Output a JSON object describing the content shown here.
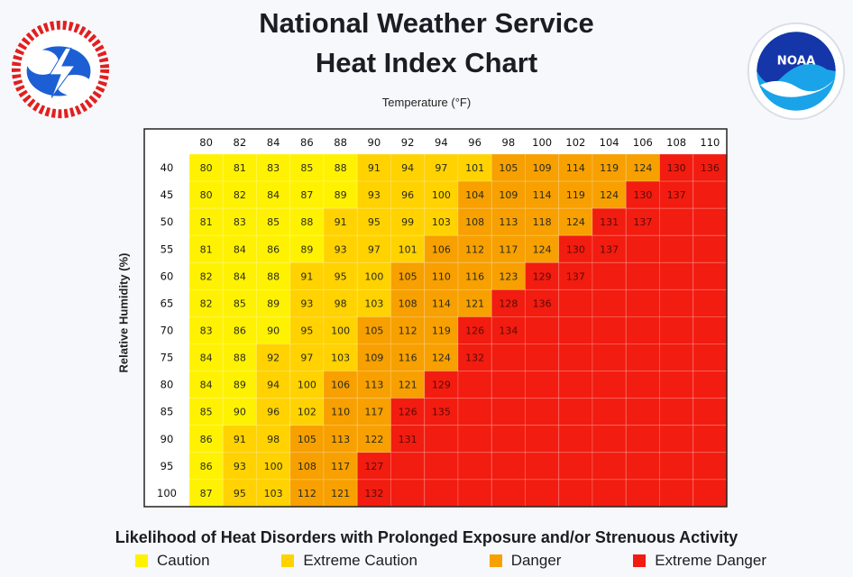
{
  "header": {
    "title_line1": "National Weather Service",
    "title_line2": "Heat Index Chart"
  },
  "logos": {
    "left": "nws-logo-icon",
    "right": "noaa-logo-icon",
    "noaa_text": "NOAA"
  },
  "chart_data": {
    "type": "heatmap",
    "xlabel": "Temperature (°F)",
    "ylabel": "Relative Humidity (%)",
    "x": [
      80,
      82,
      84,
      86,
      88,
      90,
      92,
      94,
      96,
      98,
      100,
      102,
      104,
      106,
      108,
      110
    ],
    "y": [
      40,
      45,
      50,
      55,
      60,
      65,
      70,
      75,
      80,
      85,
      90,
      95,
      100
    ],
    "values": [
      [
        80,
        81,
        83,
        85,
        88,
        91,
        94,
        97,
        101,
        105,
        109,
        114,
        119,
        124,
        130,
        136
      ],
      [
        80,
        82,
        84,
        87,
        89,
        93,
        96,
        100,
        104,
        109,
        114,
        119,
        124,
        130,
        137,
        null
      ],
      [
        81,
        83,
        85,
        88,
        91,
        95,
        99,
        103,
        108,
        113,
        118,
        124,
        131,
        137,
        null,
        null
      ],
      [
        81,
        84,
        86,
        89,
        93,
        97,
        101,
        106,
        112,
        117,
        124,
        130,
        137,
        null,
        null,
        null
      ],
      [
        82,
        84,
        88,
        91,
        95,
        100,
        105,
        110,
        116,
        123,
        129,
        137,
        null,
        null,
        null,
        null
      ],
      [
        82,
        85,
        89,
        93,
        98,
        103,
        108,
        114,
        121,
        128,
        136,
        null,
        null,
        null,
        null,
        null
      ],
      [
        83,
        86,
        90,
        95,
        100,
        105,
        112,
        119,
        126,
        134,
        null,
        null,
        null,
        null,
        null,
        null
      ],
      [
        84,
        88,
        92,
        97,
        103,
        109,
        116,
        124,
        132,
        null,
        null,
        null,
        null,
        null,
        null,
        null
      ],
      [
        84,
        89,
        94,
        100,
        106,
        113,
        121,
        129,
        null,
        null,
        null,
        null,
        null,
        null,
        null,
        null
      ],
      [
        85,
        90,
        96,
        102,
        110,
        117,
        126,
        135,
        null,
        null,
        null,
        null,
        null,
        null,
        null,
        null
      ],
      [
        86,
        91,
        98,
        105,
        113,
        122,
        131,
        null,
        null,
        null,
        null,
        null,
        null,
        null,
        null,
        null
      ],
      [
        86,
        93,
        100,
        108,
        117,
        127,
        null,
        null,
        null,
        null,
        null,
        null,
        null,
        null,
        null,
        null
      ],
      [
        87,
        95,
        103,
        112,
        121,
        132,
        null,
        null,
        null,
        null,
        null,
        null,
        null,
        null,
        null,
        null
      ]
    ],
    "categories": [
      {
        "name": "Caution",
        "color": "#fff200",
        "min": 80,
        "max": 90
      },
      {
        "name": "Extreme Caution",
        "color": "#ffd200",
        "min": 91,
        "max": 103
      },
      {
        "name": "Danger",
        "color": "#f7a000",
        "min": 104,
        "max": 124
      },
      {
        "name": "Extreme Danger",
        "color": "#f21c10",
        "min": 125,
        "max": 999
      }
    ],
    "legend_position": "bottom"
  },
  "footer": {
    "title": "Likelihood of Heat Disorders with Prolonged Exposure and/or Strenuous Activity"
  }
}
